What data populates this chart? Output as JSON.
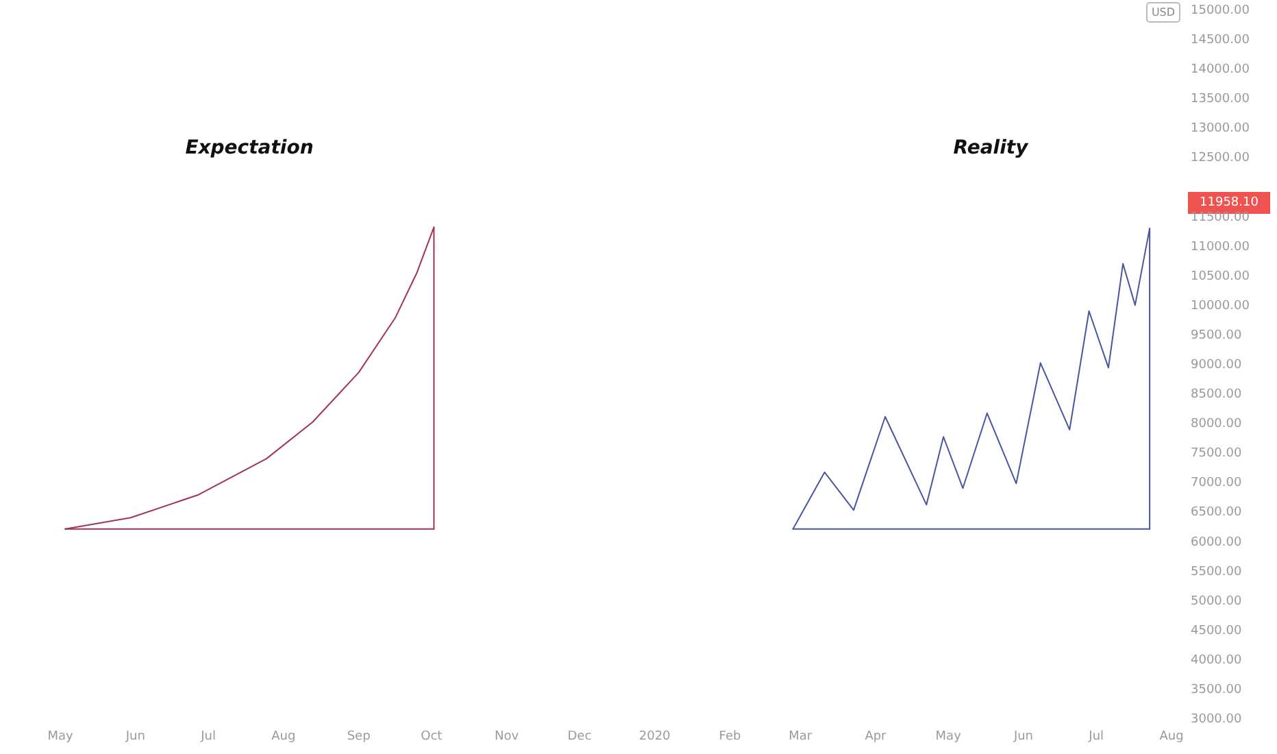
{
  "chart_data": {
    "type": "line",
    "marker": "none",
    "grid": false,
    "annotations": [
      "Expectation",
      "Reality",
      "11958.10",
      "USD"
    ],
    "xlim": [
      "2019-05-01",
      "2020-08-01"
    ],
    "xticks": [
      {
        "value": "2019-05-01",
        "label": "May"
      },
      {
        "value": "2019-06-01",
        "label": "Jun"
      },
      {
        "value": "2019-07-01",
        "label": "Jul"
      },
      {
        "value": "2019-08-01",
        "label": "Aug"
      },
      {
        "value": "2019-09-01",
        "label": "Sep"
      },
      {
        "value": "2019-10-01",
        "label": "Oct"
      },
      {
        "value": "2019-11-01",
        "label": "Nov"
      },
      {
        "value": "2019-12-01",
        "label": "Dec"
      },
      {
        "value": "2020-01-01",
        "label": "2020"
      },
      {
        "value": "2020-02-01",
        "label": "Feb"
      },
      {
        "value": "2020-03-01",
        "label": "Mar"
      },
      {
        "value": "2020-04-01",
        "label": "Apr"
      },
      {
        "value": "2020-05-01",
        "label": "May"
      },
      {
        "value": "2020-06-01",
        "label": "Jun"
      },
      {
        "value": "2020-07-01",
        "label": "Jul"
      },
      {
        "value": "2020-08-01",
        "label": "Aug"
      }
    ],
    "ylim": [
      3000,
      15000
    ],
    "yticks": [
      {
        "value": 3000,
        "label": "3000.00"
      },
      {
        "value": 3500,
        "label": "3500.00"
      },
      {
        "value": 4000,
        "label": "4000.00"
      },
      {
        "value": 4500,
        "label": "4500.00"
      },
      {
        "value": 5000,
        "label": "5000.00"
      },
      {
        "value": 5500,
        "label": "5500.00"
      },
      {
        "value": 6000,
        "label": "6000.00"
      },
      {
        "value": 6500,
        "label": "6500.00"
      },
      {
        "value": 7000,
        "label": "7000.00"
      },
      {
        "value": 7500,
        "label": "7500.00"
      },
      {
        "value": 8000,
        "label": "8000.00"
      },
      {
        "value": 8500,
        "label": "8500.00"
      },
      {
        "value": 9000,
        "label": "9000.00"
      },
      {
        "value": 9500,
        "label": "9500.00"
      },
      {
        "value": 10000,
        "label": "10000.00"
      },
      {
        "value": 10500,
        "label": "10500.00"
      },
      {
        "value": 11000,
        "label": "11000.00"
      },
      {
        "value": 11500,
        "label": "11500.00"
      },
      {
        "value": 12500,
        "label": "12500.00"
      },
      {
        "value": 13000,
        "label": "13000.00"
      },
      {
        "value": 13500,
        "label": "13500.00"
      },
      {
        "value": 14000,
        "label": "14000.00"
      },
      {
        "value": 14500,
        "label": "14500.00"
      },
      {
        "value": 15000,
        "label": "15000.00"
      }
    ],
    "series": [
      {
        "color": "#a3344f",
        "x": [
          "2019-05-03",
          "2019-05-30",
          "2019-06-27",
          "2019-07-25",
          "2019-08-13",
          "2019-09-01",
          "2019-09-16",
          "2019-09-25",
          "2019-10-02",
          "2019-10-02"
        ],
        "values": [
          6230,
          6420,
          6810,
          7420,
          8040,
          8880,
          9800,
          10570,
          11340,
          6230
        ]
      },
      {
        "color": "#a3344f",
        "x": [
          "2019-05-03",
          "2019-10-02"
        ],
        "values": [
          6230,
          6230
        ]
      },
      {
        "color": "#4a55a2",
        "x": [
          "2020-02-27",
          "2020-03-11",
          "2020-03-23",
          "2020-04-05",
          "2020-04-22",
          "2020-04-29",
          "2020-05-07",
          "2020-05-17",
          "2020-05-29",
          "2020-06-08",
          "2020-06-20",
          "2020-06-28",
          "2020-07-06",
          "2020-07-12",
          "2020-07-17",
          "2020-07-23",
          "2020-07-23"
        ],
        "values": [
          6230,
          7190,
          6550,
          8130,
          6640,
          7790,
          6920,
          8190,
          7000,
          9040,
          7910,
          9920,
          8960,
          10720,
          10020,
          11320,
          6230
        ]
      },
      {
        "color": "#4a55a2",
        "x": [
          "2020-02-27",
          "2020-07-23"
        ],
        "values": [
          6230,
          6230
        ]
      }
    ]
  }
}
